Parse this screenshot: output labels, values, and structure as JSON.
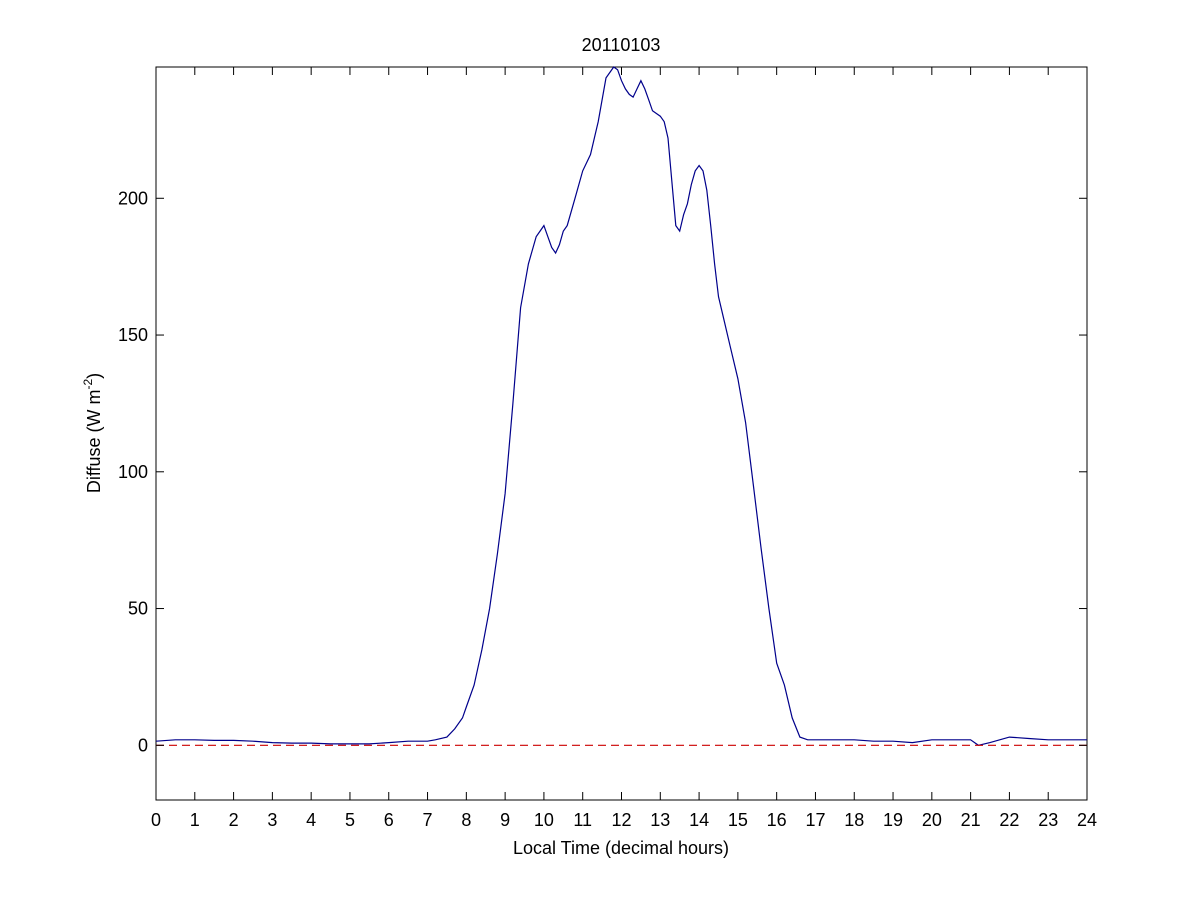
{
  "chart_data": {
    "type": "line",
    "title": "20110103",
    "xlabel": "Local Time (decimal hours)",
    "ylabel": {
      "prefix": "Diffuse (W m",
      "superscript": "-2",
      "suffix": ")"
    },
    "xlim": [
      0,
      24
    ],
    "ylim": [
      -20,
      248
    ],
    "xticks": [
      0,
      1,
      2,
      3,
      4,
      5,
      6,
      7,
      8,
      9,
      10,
      11,
      12,
      13,
      14,
      15,
      16,
      17,
      18,
      19,
      20,
      21,
      22,
      23,
      24
    ],
    "yticks": [
      0,
      50,
      100,
      150,
      200
    ],
    "grid": false,
    "series": [
      {
        "color": "#00008b",
        "style": "solid",
        "x": [
          0,
          0.5,
          1,
          1.5,
          2,
          2.5,
          3,
          3.5,
          4,
          4.5,
          5,
          5.5,
          6,
          6.5,
          7,
          7.2,
          7.5,
          7.7,
          7.9,
          8.0,
          8.2,
          8.4,
          8.6,
          8.8,
          9.0,
          9.2,
          9.4,
          9.6,
          9.8,
          10.0,
          10.1,
          10.2,
          10.3,
          10.4,
          10.5,
          10.6,
          10.8,
          11.0,
          11.2,
          11.4,
          11.6,
          11.8,
          11.9,
          12.0,
          12.1,
          12.2,
          12.3,
          12.4,
          12.5,
          12.6,
          12.7,
          12.8,
          12.9,
          13.0,
          13.1,
          13.2,
          13.3,
          13.4,
          13.5,
          13.6,
          13.7,
          13.8,
          13.9,
          14.0,
          14.1,
          14.2,
          14.3,
          14.4,
          14.5,
          14.6,
          14.8,
          15.0,
          15.2,
          15.4,
          15.6,
          15.8,
          16.0,
          16.2,
          16.4,
          16.6,
          16.8,
          17.0,
          17.2,
          17.5,
          18,
          18.5,
          19,
          19.5,
          20,
          20.5,
          21,
          21.2,
          21.5,
          22,
          22.5,
          23,
          23.5,
          24
        ],
        "y": [
          1.5,
          2,
          2,
          1.8,
          1.8,
          1.5,
          1,
          0.8,
          0.8,
          0.5,
          0.5,
          0.5,
          1,
          1.5,
          1.5,
          2,
          3,
          6,
          10,
          14,
          22,
          35,
          50,
          70,
          92,
          125,
          160,
          176,
          186,
          190,
          186,
          182,
          180,
          183,
          188,
          190,
          200,
          210,
          216,
          228,
          244,
          248,
          247,
          243,
          240,
          238,
          237,
          240,
          243,
          240,
          236,
          232,
          231,
          230,
          228,
          222,
          206,
          190,
          188,
          194,
          198,
          205,
          210,
          212,
          210,
          203,
          190,
          176,
          164,
          158,
          146,
          134,
          118,
          95,
          72,
          50,
          30,
          22,
          10,
          3,
          2,
          2,
          2,
          2,
          2,
          1.5,
          1.5,
          1,
          2,
          2,
          2,
          0,
          1,
          3,
          2.5,
          2,
          2,
          2
        ]
      },
      {
        "color": "#cc0000",
        "style": "dashed",
        "x": [
          0,
          24
        ],
        "y": [
          0,
          0
        ]
      }
    ]
  }
}
